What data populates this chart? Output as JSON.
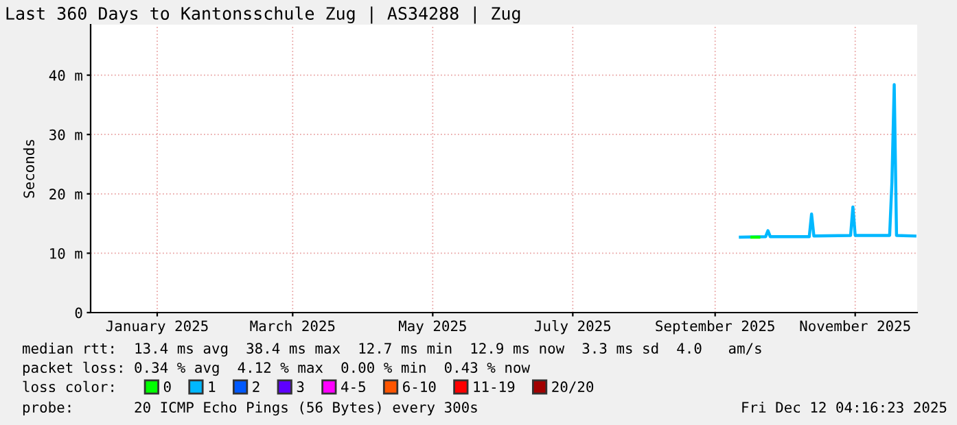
{
  "chart_data": {
    "type": "line",
    "title": "Last 360 Days to Kantonsschule Zug | AS34288 | Zug",
    "ylabel": "Seconds",
    "xlim": [
      "2024-12-17",
      "2025-12-12"
    ],
    "xticks": [
      {
        "value": "2025-01-15",
        "label": "January 2025"
      },
      {
        "value": "2025-03-15",
        "label": "March 2025"
      },
      {
        "value": "2025-05-15",
        "label": "May 2025"
      },
      {
        "value": "2025-07-15",
        "label": "July 2025"
      },
      {
        "value": "2025-09-15",
        "label": "September 2025"
      },
      {
        "value": "2025-11-15",
        "label": "November 2025"
      }
    ],
    "ylim": [
      0,
      48.5
    ],
    "yticks": [
      0,
      {
        "value": 10,
        "label": "10 m"
      },
      {
        "value": 20,
        "label": "20 m"
      },
      {
        "value": 30,
        "label": "30 m"
      },
      {
        "value": 40,
        "label": "40 m"
      }
    ],
    "grid": true,
    "legend": "bottom",
    "legend_title": "loss color:",
    "series": [
      {
        "name": "0",
        "color": "#00ff00",
        "x": [
          "2025-10-01",
          "2025-10-04"
        ],
        "values": [
          12.7,
          12.7
        ]
      },
      {
        "name": "1",
        "color": "#00b8ff",
        "x": [
          "2025-09-26",
          "2025-10-07",
          "2025-10-08",
          "2025-10-09",
          "2025-10-26",
          "2025-10-27",
          "2025-10-28",
          "2025-11-13",
          "2025-11-14",
          "2025-11-15",
          "2025-11-30",
          "2025-12-01",
          "2025-12-02",
          "2025-12-03",
          "2025-12-11"
        ],
        "values": [
          12.7,
          12.8,
          13.8,
          12.8,
          12.8,
          16.6,
          12.9,
          13.0,
          17.8,
          13.0,
          13.0,
          22.0,
          38.4,
          13.0,
          12.9
        ]
      },
      {
        "name": "2",
        "color": "#0059ff"
      },
      {
        "name": "3",
        "color": "#5e00ff"
      },
      {
        "name": "4-5",
        "color": "#ff00ff"
      },
      {
        "name": "6-10",
        "color": "#ff5500"
      },
      {
        "name": "11-19",
        "color": "#ff0000"
      },
      {
        "name": "20/20",
        "color": "#a10000"
      }
    ],
    "annotations": [
      "median rtt:  13.4 ms avg  38.4 ms max  12.7 ms min  12.9 ms now  3.3 ms sd  4.0   am/s",
      "packet loss: 0.34 % avg  4.12 % max  0.00 % min  0.43 % now",
      "probe:       20 ICMP Echo Pings (56 Bytes) every 300s",
      "Fri Dec 12 04:16:23 2025"
    ]
  }
}
